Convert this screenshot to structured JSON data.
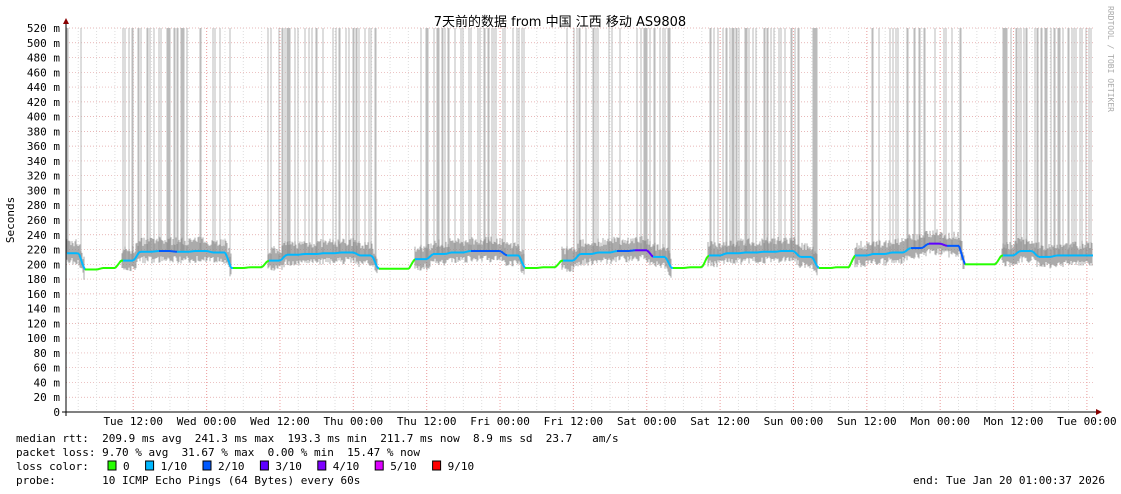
{
  "chart_data": {
    "type": "line",
    "title": "7天前的数据 from  中国 江西 移动 AS9808",
    "ylabel": "Seconds",
    "ylim": [
      0,
      520
    ],
    "y_ticks": [
      "0",
      "20 m",
      "40 m",
      "60 m",
      "80 m",
      "100 m",
      "120 m",
      "140 m",
      "160 m",
      "180 m",
      "200 m",
      "220 m",
      "240 m",
      "260 m",
      "280 m",
      "300 m",
      "320 m",
      "340 m",
      "360 m",
      "380 m",
      "400 m",
      "420 m",
      "440 m",
      "460 m",
      "480 m",
      "500 m",
      "520 m"
    ],
    "x_ticks": [
      "Tue 12:00",
      "Wed 00:00",
      "Wed 12:00",
      "Thu 00:00",
      "Thu 12:00",
      "Fri 00:00",
      "Fri 12:00",
      "Sat 00:00",
      "Sat 12:00",
      "Sun 00:00",
      "Sun 12:00",
      "Mon 00:00",
      "Mon 12:00",
      "Tue 00:00"
    ],
    "x_range_hours": [
      0,
      168
    ],
    "x_start": "Tue 01:00",
    "sample_step_hours": 3,
    "series": [
      {
        "name": "median rtt (ms)",
        "values": [
          215,
          193,
          195,
          205,
          217,
          218,
          217,
          218,
          216,
          195,
          196,
          205,
          213,
          214,
          215,
          216,
          212,
          194,
          194,
          207,
          214,
          216,
          218,
          218,
          212,
          195,
          196,
          205,
          214,
          216,
          218,
          219,
          210,
          195,
          196,
          212,
          215,
          216,
          217,
          218,
          210,
          195,
          196,
          212,
          214,
          216,
          222,
          228,
          225,
          200,
          200,
          212,
          218,
          210,
          212,
          212
        ],
        "loss": [
          1,
          0,
          0,
          1,
          1,
          2,
          1,
          1,
          1,
          0,
          0,
          1,
          1,
          1,
          1,
          1,
          1,
          0,
          0,
          1,
          1,
          1,
          2,
          2,
          1,
          0,
          0,
          1,
          1,
          1,
          2,
          3,
          1,
          0,
          0,
          1,
          1,
          1,
          1,
          1,
          1,
          0,
          0,
          1,
          1,
          1,
          2,
          3,
          2,
          0,
          0,
          1,
          1,
          1,
          1,
          1
        ]
      }
    ],
    "loss_colors": {
      "0": "#26ff00",
      "1": "#00b8ff",
      "2": "#0059ff",
      "3": "#5e00ff",
      "4": "#7e00ff",
      "5": "#dd00ff",
      "9": "#ff0000"
    }
  },
  "watermark": "RRDTOOL / TOBI OETIKER",
  "legend": {
    "median_rtt": "median rtt:  209.9 ms avg  241.3 ms max  193.3 ms min  211.7 ms now  8.9 ms sd  23.7   am/s",
    "packet_loss": "packet loss: 9.70 % avg  31.67 % max  0.00 % min  15.47 % now",
    "loss_color_label": "loss color:",
    "loss_items": [
      {
        "label": "0",
        "color": "#26ff00"
      },
      {
        "label": "1/10",
        "color": "#00b8ff"
      },
      {
        "label": "2/10",
        "color": "#0059ff"
      },
      {
        "label": "3/10",
        "color": "#5e00ff"
      },
      {
        "label": "4/10",
        "color": "#7e00ff"
      },
      {
        "label": "5/10",
        "color": "#dd00ff"
      },
      {
        "label": "9/10",
        "color": "#ff0000"
      }
    ],
    "probe": "probe:       10 ICMP Echo Pings (64 Bytes) every 60s",
    "end": "end: Tue Jan 20 01:00:37 2026"
  }
}
